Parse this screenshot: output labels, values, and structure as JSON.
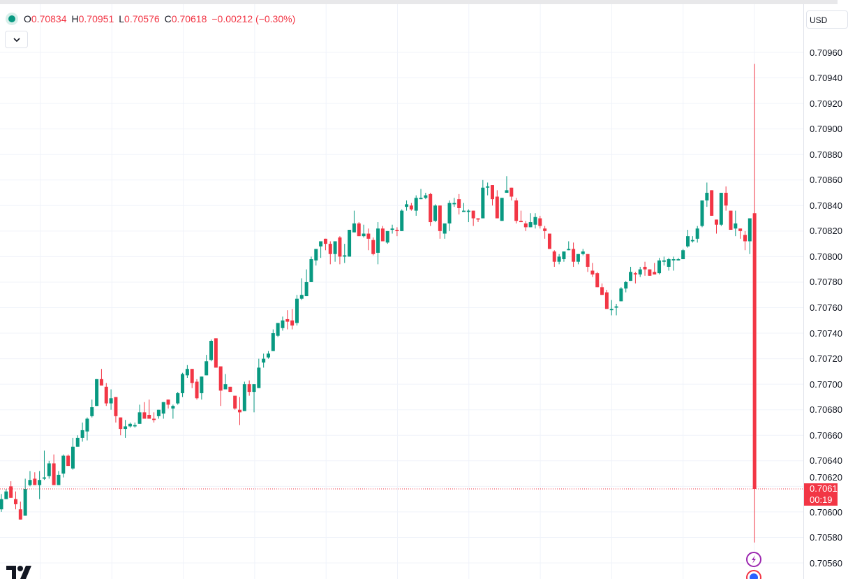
{
  "legend": {
    "status_color": "#089981",
    "open_label": "O",
    "open": "0.70834",
    "high_label": "H",
    "high": "0.70951",
    "low_label": "L",
    "low": "0.70576",
    "close_label": "C",
    "close": "0.70618",
    "change": "−0.00212 (−0.30%)"
  },
  "currency_button": "USD",
  "last_price_tag": {
    "price": "0.70618",
    "countdown": "00:19",
    "color": "#f23645"
  },
  "icons": [
    "chevron-down-icon",
    "lightning-icon",
    "flag-icon",
    "tradingview-logo"
  ],
  "chart_data": {
    "type": "candlestick",
    "title": "",
    "xlabel": "",
    "ylabel": "",
    "ylim": [
      0.70555,
      0.7097
    ],
    "y_ticks": [
      "0.70960",
      "0.70940",
      "0.70920",
      "0.70900",
      "0.70880",
      "0.70860",
      "0.70840",
      "0.70820",
      "0.70800",
      "0.70780",
      "0.70760",
      "0.70740",
      "0.70720",
      "0.70700",
      "0.70680",
      "0.70660",
      "0.70640",
      "0.70620",
      "0.70600",
      "0.70580",
      "0.70560"
    ],
    "grid": true,
    "up_color": "#089981",
    "down_color": "#f23645",
    "last_price_line": 0.70618,
    "ohlc": [
      [
        0.70602,
        0.70614,
        0.706,
        0.7061
      ],
      [
        0.7061,
        0.70618,
        0.7061,
        0.70616
      ],
      [
        0.7062,
        0.70624,
        0.70611,
        0.70611
      ],
      [
        0.7061,
        0.70616,
        0.70602,
        0.70606
      ],
      [
        0.70602,
        0.70608,
        0.70594,
        0.70594
      ],
      [
        0.70597,
        0.70626,
        0.70597,
        0.70618
      ],
      [
        0.70621,
        0.70632,
        0.7062,
        0.70625
      ],
      [
        0.70626,
        0.70631,
        0.70621,
        0.70621
      ],
      [
        0.70621,
        0.70632,
        0.7061,
        0.70625
      ],
      [
        0.70626,
        0.70648,
        0.70625,
        0.70627
      ],
      [
        0.70628,
        0.7064,
        0.70626,
        0.70638
      ],
      [
        0.70638,
        0.70645,
        0.70621,
        0.70621
      ],
      [
        0.70621,
        0.70632,
        0.70621,
        0.70629
      ],
      [
        0.7063,
        0.70645,
        0.70627,
        0.70644
      ],
      [
        0.70644,
        0.70645,
        0.70636,
        0.70636
      ],
      [
        0.70634,
        0.70658,
        0.70633,
        0.70651
      ],
      [
        0.70651,
        0.7066,
        0.70651,
        0.70658
      ],
      [
        0.70658,
        0.7067,
        0.70655,
        0.70664
      ],
      [
        0.70663,
        0.70674,
        0.70656,
        0.70673
      ],
      [
        0.70675,
        0.70688,
        0.70674,
        0.70682
      ],
      [
        0.70683,
        0.70704,
        0.70683,
        0.70704
      ],
      [
        0.70704,
        0.70712,
        0.70699,
        0.70699
      ],
      [
        0.70698,
        0.70701,
        0.70683,
        0.70685
      ],
      [
        0.70685,
        0.70696,
        0.7068,
        0.70689
      ],
      [
        0.7069,
        0.7069,
        0.7067,
        0.70675
      ],
      [
        0.70674,
        0.70674,
        0.7066,
        0.70665
      ],
      [
        0.70665,
        0.70672,
        0.70658,
        0.70667
      ],
      [
        0.70667,
        0.7067,
        0.70666,
        0.70669
      ],
      [
        0.70667,
        0.7067,
        0.70666,
        0.70668
      ],
      [
        0.70669,
        0.70684,
        0.70669,
        0.70678
      ],
      [
        0.70678,
        0.70686,
        0.70673,
        0.70673
      ],
      [
        0.70676,
        0.70688,
        0.70673,
        0.70673
      ],
      [
        0.70673,
        0.70678,
        0.7067,
        0.70672
      ],
      [
        0.70675,
        0.7068,
        0.70673,
        0.7068
      ],
      [
        0.70677,
        0.70686,
        0.70673,
        0.70686
      ],
      [
        0.70688,
        0.70688,
        0.70681,
        0.70684
      ],
      [
        0.70681,
        0.70684,
        0.70673,
        0.70683
      ],
      [
        0.70685,
        0.70694,
        0.70684,
        0.70693
      ],
      [
        0.70693,
        0.70709,
        0.7069,
        0.70708
      ],
      [
        0.70707,
        0.70715,
        0.70705,
        0.70712
      ],
      [
        0.70712,
        0.70712,
        0.70697,
        0.70701
      ],
      [
        0.70702,
        0.70704,
        0.70688,
        0.70689
      ],
      [
        0.70693,
        0.70706,
        0.70688,
        0.70706
      ],
      [
        0.70707,
        0.70723,
        0.70707,
        0.70718
      ],
      [
        0.70719,
        0.70735,
        0.70718,
        0.70734
      ],
      [
        0.70736,
        0.70736,
        0.70713,
        0.70713
      ],
      [
        0.70714,
        0.70714,
        0.70683,
        0.70695
      ],
      [
        0.70696,
        0.70708,
        0.70696,
        0.707
      ],
      [
        0.70698,
        0.70698,
        0.70694,
        0.70694
      ],
      [
        0.70691,
        0.70691,
        0.7068,
        0.70681
      ],
      [
        0.7068,
        0.7069,
        0.70668,
        0.70678
      ],
      [
        0.70679,
        0.70702,
        0.70679,
        0.707
      ],
      [
        0.707,
        0.70703,
        0.70691,
        0.70694
      ],
      [
        0.70694,
        0.707,
        0.70678,
        0.707
      ],
      [
        0.70697,
        0.7072,
        0.70697,
        0.70713
      ],
      [
        0.70717,
        0.70724,
        0.70713,
        0.7072
      ],
      [
        0.70721,
        0.70726,
        0.7072,
        0.70724
      ],
      [
        0.70726,
        0.70743,
        0.70726,
        0.7074
      ],
      [
        0.70738,
        0.70748,
        0.70737,
        0.70748
      ],
      [
        0.70744,
        0.70753,
        0.70742,
        0.7075
      ],
      [
        0.70751,
        0.70758,
        0.70743,
        0.70749
      ],
      [
        0.7075,
        0.70759,
        0.70743,
        0.70746
      ],
      [
        0.70748,
        0.7077,
        0.70746,
        0.70767
      ],
      [
        0.70767,
        0.70783,
        0.70766,
        0.7077
      ],
      [
        0.70769,
        0.7079,
        0.70769,
        0.7078
      ],
      [
        0.7078,
        0.708,
        0.7078,
        0.70798
      ],
      [
        0.70797,
        0.70806,
        0.70793,
        0.70806
      ],
      [
        0.70808,
        0.70812,
        0.70799,
        0.70812
      ],
      [
        0.70814,
        0.70814,
        0.70805,
        0.7081
      ],
      [
        0.7081,
        0.70812,
        0.70794,
        0.70802
      ],
      [
        0.70802,
        0.70812,
        0.70796,
        0.70812
      ],
      [
        0.70815,
        0.70816,
        0.70794,
        0.708
      ],
      [
        0.708,
        0.7081,
        0.70795,
        0.70801
      ],
      [
        0.708,
        0.70821,
        0.708,
        0.70821
      ],
      [
        0.70819,
        0.70836,
        0.70819,
        0.70826
      ],
      [
        0.70826,
        0.70827,
        0.70816,
        0.70816
      ],
      [
        0.70816,
        0.70825,
        0.70815,
        0.70818
      ],
      [
        0.70818,
        0.70822,
        0.70805,
        0.70814
      ],
      [
        0.70813,
        0.70815,
        0.70801,
        0.70802
      ],
      [
        0.70803,
        0.70827,
        0.70794,
        0.70822
      ],
      [
        0.70822,
        0.70824,
        0.70812,
        0.70812
      ],
      [
        0.70811,
        0.7082,
        0.7081,
        0.7082
      ],
      [
        0.70821,
        0.70825,
        0.70818,
        0.70822
      ],
      [
        0.70821,
        0.70823,
        0.70816,
        0.7082
      ],
      [
        0.7082,
        0.70837,
        0.7082,
        0.70836
      ],
      [
        0.70839,
        0.70844,
        0.70836,
        0.70841
      ],
      [
        0.7084,
        0.70842,
        0.70836,
        0.70837
      ],
      [
        0.70836,
        0.70848,
        0.70832,
        0.70846
      ],
      [
        0.70845,
        0.70853,
        0.70845,
        0.70846
      ],
      [
        0.70846,
        0.7085,
        0.70845,
        0.70848
      ],
      [
        0.70849,
        0.7085,
        0.70824,
        0.70827
      ],
      [
        0.70828,
        0.70841,
        0.70827,
        0.7084
      ],
      [
        0.7084,
        0.7084,
        0.70814,
        0.7082
      ],
      [
        0.70818,
        0.70826,
        0.70814,
        0.70826
      ],
      [
        0.70826,
        0.70844,
        0.7082,
        0.70842
      ],
      [
        0.70841,
        0.70846,
        0.70839,
        0.70842
      ],
      [
        0.70845,
        0.70849,
        0.70833,
        0.70838
      ],
      [
        0.70835,
        0.70842,
        0.70835,
        0.70836
      ],
      [
        0.70835,
        0.70837,
        0.70827,
        0.70836
      ],
      [
        0.70836,
        0.70836,
        0.70824,
        0.7083
      ],
      [
        0.7083,
        0.7083,
        0.70827,
        0.70829
      ],
      [
        0.7083,
        0.7086,
        0.7083,
        0.70854
      ],
      [
        0.70854,
        0.70858,
        0.70848,
        0.70855
      ],
      [
        0.70856,
        0.70856,
        0.7084,
        0.70845
      ],
      [
        0.70847,
        0.70852,
        0.7083,
        0.7083
      ],
      [
        0.70828,
        0.70846,
        0.70828,
        0.70846
      ],
      [
        0.7085,
        0.70863,
        0.7085,
        0.70852
      ],
      [
        0.70854,
        0.70854,
        0.70844,
        0.70847
      ],
      [
        0.70844,
        0.70846,
        0.70826,
        0.70828
      ],
      [
        0.70828,
        0.70836,
        0.70827,
        0.70827
      ],
      [
        0.70826,
        0.70828,
        0.7082,
        0.70823
      ],
      [
        0.70823,
        0.70834,
        0.70823,
        0.70827
      ],
      [
        0.70825,
        0.70834,
        0.70822,
        0.70831
      ],
      [
        0.7083,
        0.70832,
        0.70822,
        0.70824
      ],
      [
        0.70822,
        0.70824,
        0.70814,
        0.7082
      ],
      [
        0.70818,
        0.70818,
        0.70806,
        0.70806
      ],
      [
        0.70804,
        0.70805,
        0.70792,
        0.70796
      ],
      [
        0.70796,
        0.70802,
        0.70794,
        0.708
      ],
      [
        0.70798,
        0.70804,
        0.70796,
        0.70804
      ],
      [
        0.70805,
        0.70812,
        0.70805,
        0.70806
      ],
      [
        0.70806,
        0.70811,
        0.70792,
        0.70796
      ],
      [
        0.70796,
        0.70802,
        0.70794,
        0.70802
      ],
      [
        0.70802,
        0.70806,
        0.70801,
        0.70804
      ],
      [
        0.70802,
        0.70802,
        0.70788,
        0.70792
      ],
      [
        0.70789,
        0.70795,
        0.70784,
        0.70786
      ],
      [
        0.70787,
        0.70788,
        0.70776,
        0.70776
      ],
      [
        0.70776,
        0.70779,
        0.7077,
        0.7077
      ],
      [
        0.70772,
        0.70774,
        0.70759,
        0.70759
      ],
      [
        0.70758,
        0.70766,
        0.70754,
        0.70759
      ],
      [
        0.7076,
        0.70763,
        0.70754,
        0.70761
      ],
      [
        0.70765,
        0.70776,
        0.70765,
        0.70775
      ],
      [
        0.70775,
        0.70781,
        0.70772,
        0.7078
      ],
      [
        0.70781,
        0.70792,
        0.70781,
        0.70788
      ],
      [
        0.70787,
        0.70788,
        0.70779,
        0.70786
      ],
      [
        0.70786,
        0.70792,
        0.70784,
        0.7079
      ],
      [
        0.70792,
        0.70796,
        0.70785,
        0.7079
      ],
      [
        0.7079,
        0.7079,
        0.70785,
        0.70785
      ],
      [
        0.70788,
        0.70795,
        0.70786,
        0.70786
      ],
      [
        0.70787,
        0.70799,
        0.70786,
        0.70797
      ],
      [
        0.70796,
        0.708,
        0.70793,
        0.70797
      ],
      [
        0.70792,
        0.70799,
        0.70789,
        0.70798
      ],
      [
        0.70797,
        0.708,
        0.70789,
        0.70798
      ],
      [
        0.70797,
        0.70799,
        0.70797,
        0.70798
      ],
      [
        0.70798,
        0.70806,
        0.70798,
        0.70805
      ],
      [
        0.70808,
        0.70821,
        0.70807,
        0.70816
      ],
      [
        0.70812,
        0.70816,
        0.70811,
        0.70813
      ],
      [
        0.70814,
        0.70824,
        0.70811,
        0.70822
      ],
      [
        0.70824,
        0.70844,
        0.70823,
        0.70844
      ],
      [
        0.70844,
        0.70858,
        0.70839,
        0.7085
      ],
      [
        0.70852,
        0.70852,
        0.70832,
        0.70832
      ],
      [
        0.70829,
        0.70829,
        0.70818,
        0.70825
      ],
      [
        0.70825,
        0.7085,
        0.70824,
        0.7085
      ],
      [
        0.7085,
        0.70855,
        0.70836,
        0.7084
      ],
      [
        0.70836,
        0.70836,
        0.70821,
        0.70821
      ],
      [
        0.70822,
        0.70836,
        0.70816,
        0.70826
      ],
      [
        0.70822,
        0.70822,
        0.70814,
        0.7082
      ],
      [
        0.70817,
        0.7082,
        0.70805,
        0.70812
      ],
      [
        0.70812,
        0.7083,
        0.70802,
        0.7083
      ],
      [
        0.70834,
        0.70951,
        0.70576,
        0.70618
      ]
    ]
  }
}
